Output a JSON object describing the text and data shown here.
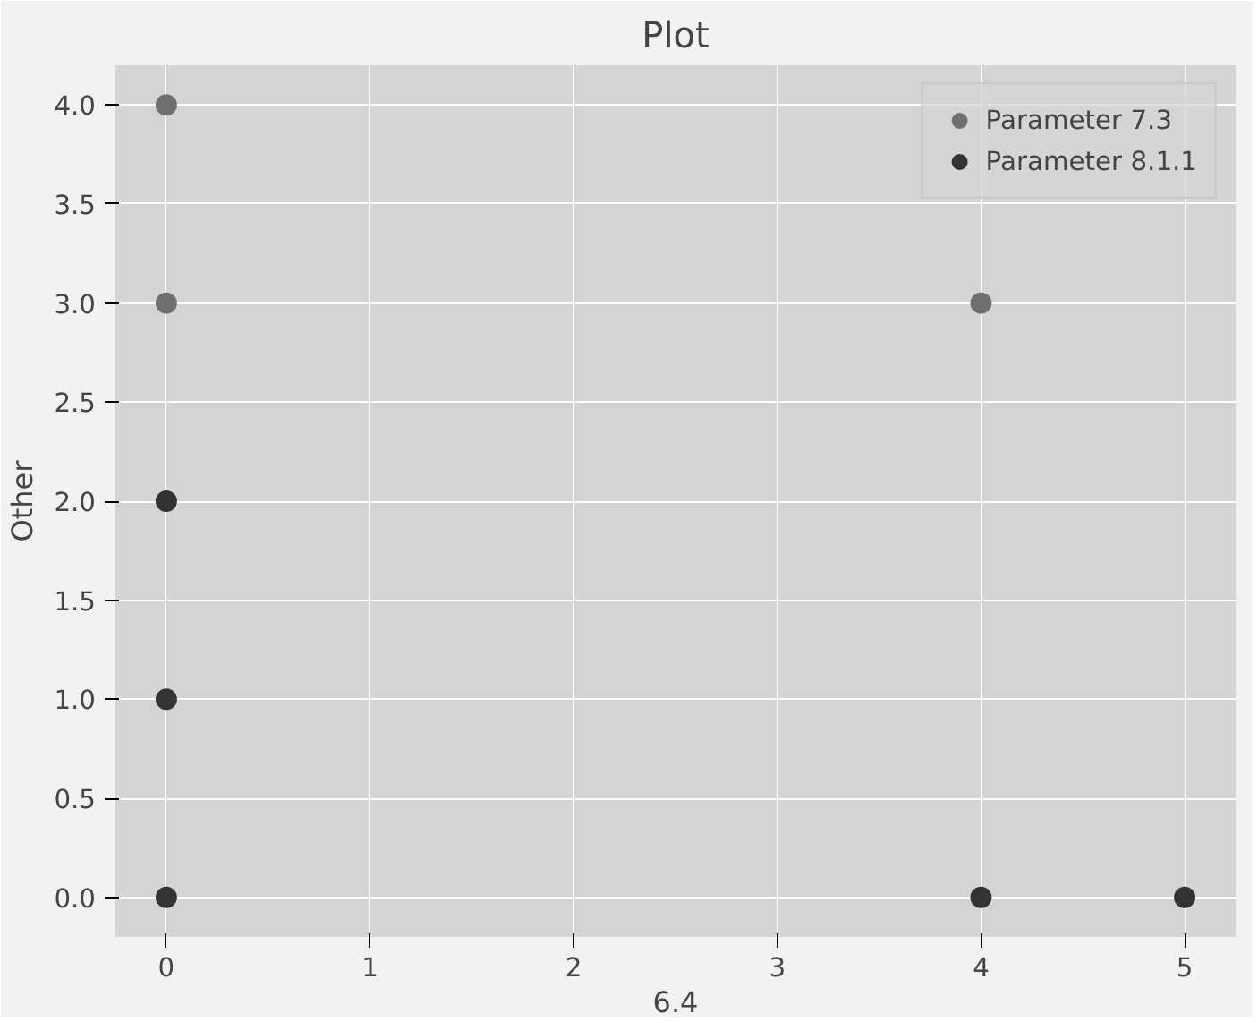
{
  "chart_data": {
    "type": "scatter",
    "title": "Plot",
    "xlabel": "6.4",
    "ylabel": "Other",
    "xlim": [
      -0.25,
      5.25
    ],
    "ylim": [
      -0.2,
      4.2
    ],
    "xticks": [
      0,
      1,
      2,
      3,
      4,
      5
    ],
    "yticks": [
      {
        "value": 0,
        "label": "0.0"
      },
      {
        "value": 0.5,
        "label": "0.5"
      },
      {
        "value": 1,
        "label": "1.0"
      },
      {
        "value": 1.5,
        "label": "1.5"
      },
      {
        "value": 2,
        "label": "2.0"
      },
      {
        "value": 2.5,
        "label": "2.5"
      },
      {
        "value": 3,
        "label": "3.0"
      },
      {
        "value": 3.5,
        "label": "3.5"
      },
      {
        "value": 4,
        "label": "4.0"
      }
    ],
    "grid": true,
    "legend": "top right",
    "marker": "circle",
    "series": [
      {
        "name": "Parameter 7.3",
        "color": "#707070",
        "x": [
          0,
          0,
          4
        ],
        "values": [
          4,
          3,
          3
        ]
      },
      {
        "name": "Parameter 8.1.1",
        "color": "#333333",
        "x": [
          0,
          0,
          0,
          4,
          5
        ],
        "values": [
          2,
          1,
          0,
          0,
          0
        ]
      }
    ]
  }
}
